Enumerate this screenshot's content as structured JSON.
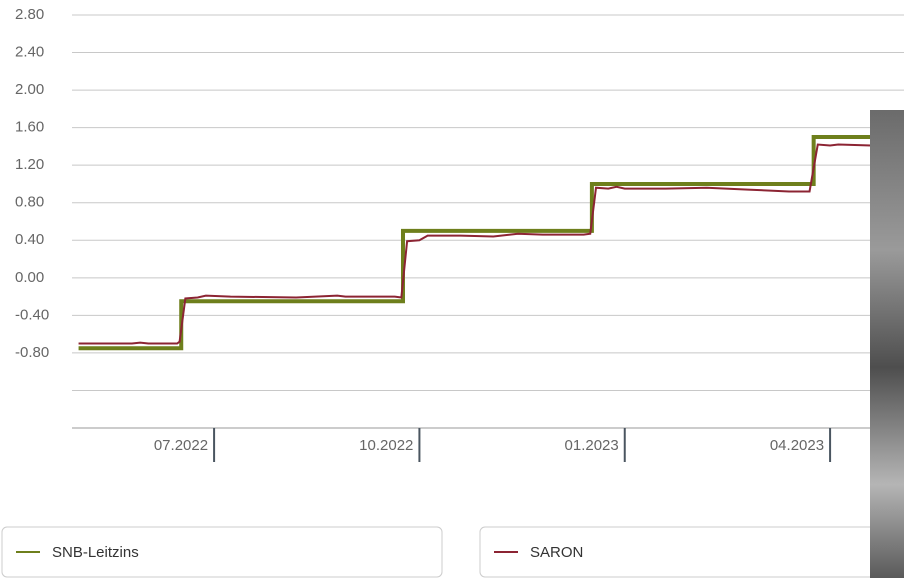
{
  "chart_data": {
    "type": "line",
    "series": [
      {
        "name": "SNB-Leitzins",
        "color": "#6e7f1c",
        "width": 4,
        "x": [
          2022.335,
          2022.46,
          2022.46,
          2022.73,
          2022.73,
          2022.96,
          2022.96,
          2023.23,
          2023.23,
          2023.3
        ],
        "values": [
          -0.75,
          -0.75,
          -0.25,
          -0.25,
          0.5,
          0.5,
          1.0,
          1.0,
          1.5,
          1.5
        ]
      },
      {
        "name": "SARON",
        "color": "#8c2433",
        "width": 2,
        "x": [
          2022.335,
          2022.4,
          2022.41,
          2022.42,
          2022.455,
          2022.458,
          2022.465,
          2022.48,
          2022.49,
          2022.52,
          2022.6,
          2022.65,
          2022.66,
          2022.72,
          2022.728,
          2022.735,
          2022.75,
          2022.76,
          2022.8,
          2022.84,
          2022.87,
          2022.9,
          2022.95,
          2022.958,
          2022.965,
          2022.98,
          2022.99,
          2023.0,
          2023.05,
          2023.1,
          2023.15,
          2023.2,
          2023.225,
          2023.235,
          2023.25,
          2023.26,
          2023.3
        ],
        "values": [
          -0.7,
          -0.7,
          -0.69,
          -0.7,
          -0.7,
          -0.68,
          -0.22,
          -0.21,
          -0.19,
          -0.2,
          -0.21,
          -0.19,
          -0.2,
          -0.2,
          -0.21,
          0.39,
          0.4,
          0.45,
          0.45,
          0.44,
          0.47,
          0.46,
          0.46,
          0.47,
          0.96,
          0.95,
          0.97,
          0.95,
          0.95,
          0.96,
          0.94,
          0.92,
          0.92,
          1.42,
          1.41,
          1.42,
          1.41
        ]
      }
    ],
    "xlim": [
      2022.327,
      2023.34
    ],
    "xticks": [
      {
        "value": 2022.5,
        "label": "07.2022"
      },
      {
        "value": 2022.75,
        "label": "10.2022"
      },
      {
        "value": 2023.0,
        "label": "01.2023"
      },
      {
        "value": 2023.25,
        "label": "04.2023"
      }
    ],
    "ylim": [
      -1.6,
      2.8
    ],
    "yticks": [
      {
        "value": 2.8,
        "label": "2.80"
      },
      {
        "value": 2.4,
        "label": "2.40"
      },
      {
        "value": 2.0,
        "label": "2.00"
      },
      {
        "value": 1.6,
        "label": "1.60"
      },
      {
        "value": 1.2,
        "label": "1.20"
      },
      {
        "value": 0.8,
        "label": "0.80"
      },
      {
        "value": 0.4,
        "label": "0.40"
      },
      {
        "value": 0.0,
        "label": "0.00"
      },
      {
        "value": -0.4,
        "label": "-0.40"
      },
      {
        "value": -0.8,
        "label": "-0.80"
      },
      {
        "value": -1.2,
        "label": null
      },
      {
        "value": -1.6,
        "label": null
      }
    ],
    "grid": true,
    "legend": "bottom"
  }
}
